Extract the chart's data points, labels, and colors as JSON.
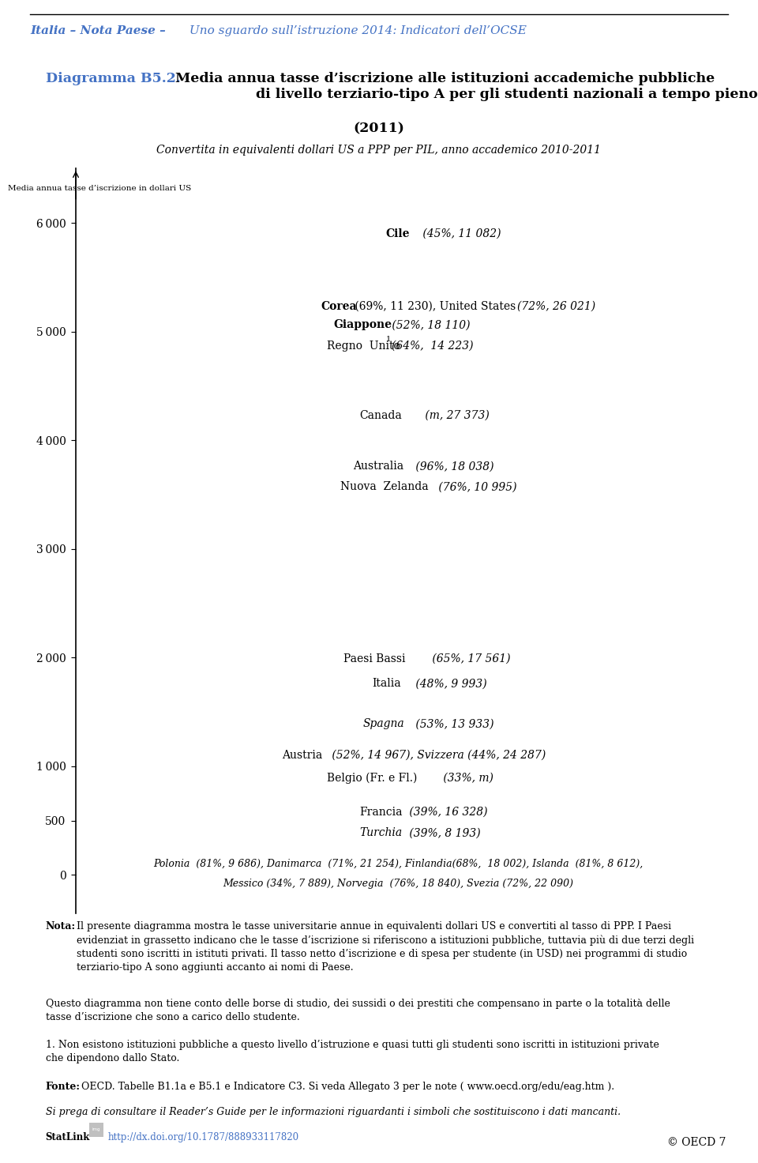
{
  "page_title_bold": "Italia – Nota Paese –",
  "page_title_italic": " Uno sguardo sull’istruzione 2014: Indicatori dell’OCSE",
  "diagram_label_blue": "Diagramma B5.2.",
  "diagram_title_rest": " Media annua tasse d’iscrizione alle istituzioni accademiche pubbliche\n                  di livello terziario-tipo A per gli studenti nazionali a tempo pieno",
  "diagram_year": "(2011)",
  "diagram_subtitle": "Convertita in equivalenti dollari US a PPP per PIL, anno accademico 2010-2011",
  "yaxis_label": "Media annua tasse d’iscrizione in dollari US",
  "yticks": [
    0,
    500,
    1000,
    2000,
    3000,
    4000,
    5000,
    6000
  ],
  "note_bold": "Nota:",
  "note1": "Il presente diagramma mostra le tasse universitarie annue in equivalenti dollari US e convertiti al tasso di PPP. I Paesi\nevidenziat in grassetto indicano che le tasse d’iscrizione si riferiscono a istituzioni pubbliche, tuttavia più di due terzi degli\nstudenti sono iscritti in istituti privati. Il tasso netto d’iscrizione e di spesa per studente (in USD) nei programmi di studio\nterziario-tipo A sono aggiunti accanto ai nomi di Paese.",
  "note2": "Questo diagramma non tiene conto delle borse di studio, dei sussidi o dei prestiti che compensano in parte o la totalità delle\ntasse d’iscrizione che sono a carico dello studente.",
  "footnote1": "1. Non esistono istituzioni pubbliche a questo livello d’istruzione e quasi tutti gli studenti sono iscritti in istituzioni private\nche dipendono dallo Stato.",
  "fonte_bold": "Fonte:",
  "fonte_rest": "OECD. Tabelle B1.1a e B5.1 e Indicatore C3. Si veda Allegato 3 per le note ( www.oecd.org/edu/eag.htm ).",
  "italic_note": "Si prega di consultare il Reader’s Guide per le informazioni riguardanti i simboli che sostituiscono i dati mancanti.",
  "statlink_label": "StatLink",
  "statlink_url": "http://dx.doi.org/10.1787/888933117820",
  "oecd_text": "© OECD 7",
  "blue_color": "#4472C4",
  "text_color": "#000000",
  "bg_color": "#ffffff"
}
